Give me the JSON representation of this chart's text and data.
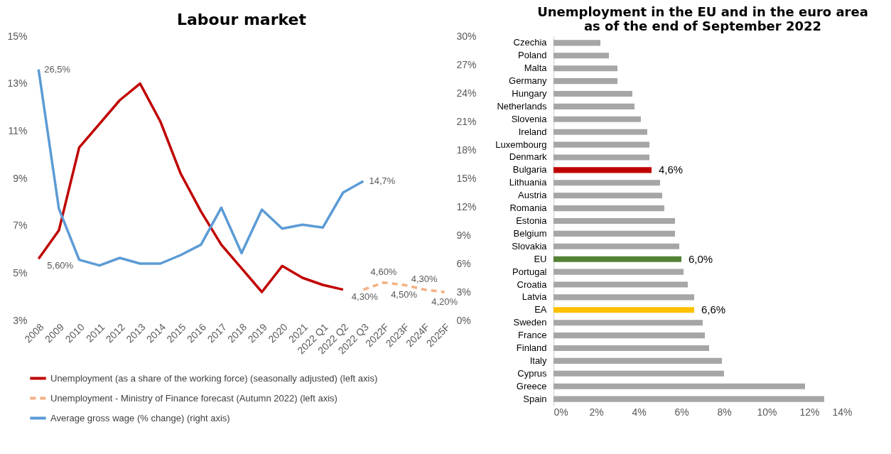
{
  "chart_data": [
    {
      "type": "line",
      "title": "Labour market",
      "categories": [
        "2008",
        "2009",
        "2010",
        "2011",
        "2012",
        "2013",
        "2014",
        "2015",
        "2016",
        "2017",
        "2018",
        "2019",
        "2020",
        "2021",
        "2022 Q1",
        "2022 Q2",
        "2022 Q3",
        "2022F",
        "2023F",
        "2024F",
        "2025F"
      ],
      "series": [
        {
          "name": "Unemployment (as a share of the working force) (seasonally adjusted) (left axis)",
          "color": "#c00000",
          "axis": "y",
          "line_style": "solid",
          "values": [
            5.6,
            6.8,
            10.3,
            11.3,
            12.3,
            13.0,
            11.4,
            9.2,
            7.6,
            6.2,
            5.2,
            4.2,
            5.3,
            4.8,
            4.5,
            4.3,
            null,
            null,
            null,
            null,
            null
          ],
          "value_labels": [
            "5,60%",
            null,
            null,
            null,
            null,
            null,
            null,
            null,
            null,
            null,
            null,
            null,
            null,
            null,
            null,
            "4,30%",
            null,
            null,
            null,
            null,
            null
          ]
        },
        {
          "name": "Unemployment - Ministry of Finance forecast (Autumn 2022) (left axis)",
          "color": "#f4b183",
          "axis": "y",
          "line_style": "dashed",
          "values": [
            null,
            null,
            null,
            null,
            null,
            null,
            null,
            null,
            null,
            null,
            null,
            null,
            null,
            null,
            null,
            null,
            4.3,
            4.6,
            4.5,
            4.3,
            4.2
          ],
          "value_labels": [
            null,
            null,
            null,
            null,
            null,
            null,
            null,
            null,
            null,
            null,
            null,
            null,
            null,
            null,
            null,
            null,
            null,
            "4,60%",
            "4,50%",
            "4,30%",
            "4,20%"
          ]
        },
        {
          "name": "Average gross wage (% change) (right axis)",
          "color": "#5b9bd5",
          "axis": "y2",
          "line_style": "solid",
          "values": [
            26.5,
            11.8,
            6.4,
            5.8,
            6.6,
            6.0,
            6.0,
            6.9,
            8.0,
            11.9,
            7.1,
            11.7,
            9.7,
            10.1,
            9.8,
            13.5,
            14.7,
            null,
            null,
            null,
            null
          ],
          "value_labels": [
            "26,5%",
            null,
            null,
            null,
            null,
            null,
            null,
            null,
            null,
            null,
            null,
            null,
            null,
            null,
            null,
            null,
            "14,7%",
            null,
            null,
            null,
            null
          ]
        }
      ],
      "ylim": [
        3,
        15
      ],
      "yticks": [
        {
          "value": 3,
          "label": "3%"
        },
        {
          "value": 5,
          "label": "5%"
        },
        {
          "value": 7,
          "label": "7%"
        },
        {
          "value": 9,
          "label": "9%"
        },
        {
          "value": 11,
          "label": "11%"
        },
        {
          "value": 13,
          "label": "13%"
        },
        {
          "value": 15,
          "label": "15%"
        }
      ],
      "y2lim": [
        0,
        30
      ],
      "y2ticks": [
        {
          "value": 0,
          "label": "0%"
        },
        {
          "value": 3,
          "label": "3%"
        },
        {
          "value": 6,
          "label": "6%"
        },
        {
          "value": 9,
          "label": "9%"
        },
        {
          "value": 12,
          "label": "12%"
        },
        {
          "value": 15,
          "label": "15%"
        },
        {
          "value": 18,
          "label": "18%"
        },
        {
          "value": 21,
          "label": "21%"
        },
        {
          "value": 24,
          "label": "24%"
        },
        {
          "value": 27,
          "label": "27%"
        },
        {
          "value": 30,
          "label": "30%"
        }
      ],
      "legend": "bottom"
    },
    {
      "type": "bar",
      "orientation": "horizontal",
      "title": "Unemployment in the EU and in the euro area as of the end of September 2022",
      "categories": [
        "Czechia",
        "Poland",
        "Malta",
        "Germany",
        "Hungary",
        "Netherlands",
        "Slovenia",
        "Ireland",
        "Luxembourg",
        "Denmark",
        "Bulgaria",
        "Lithuania",
        "Austria",
        "Romania",
        "Estonia",
        "Belgium",
        "Slovakia",
        "EU",
        "Portugal",
        "Croatia",
        "Latvia",
        "EA",
        "Sweden",
        "France",
        "Finland",
        "Italy",
        "Cyprus",
        "Greece",
        "Spain"
      ],
      "values": [
        2.2,
        2.6,
        3.0,
        3.0,
        3.7,
        3.8,
        4.1,
        4.4,
        4.5,
        4.5,
        4.6,
        5.0,
        5.1,
        5.2,
        5.7,
        5.7,
        5.9,
        6.0,
        6.1,
        6.3,
        6.6,
        6.6,
        7.0,
        7.1,
        7.3,
        7.9,
        8.0,
        11.8,
        12.7
      ],
      "colors": [
        "#a6a6a6",
        "#a6a6a6",
        "#a6a6a6",
        "#a6a6a6",
        "#a6a6a6",
        "#a6a6a6",
        "#a6a6a6",
        "#a6a6a6",
        "#a6a6a6",
        "#a6a6a6",
        "#c00000",
        "#a6a6a6",
        "#a6a6a6",
        "#a6a6a6",
        "#a6a6a6",
        "#a6a6a6",
        "#a6a6a6",
        "#548235",
        "#a6a6a6",
        "#a6a6a6",
        "#a6a6a6",
        "#ffc000",
        "#a6a6a6",
        "#a6a6a6",
        "#a6a6a6",
        "#a6a6a6",
        "#a6a6a6",
        "#a6a6a6",
        "#a6a6a6"
      ],
      "value_labels": [
        null,
        null,
        null,
        null,
        null,
        null,
        null,
        null,
        null,
        null,
        "4,6%",
        null,
        null,
        null,
        null,
        null,
        null,
        "6,0%",
        null,
        null,
        null,
        "6,6%",
        null,
        null,
        null,
        null,
        null,
        null,
        null
      ],
      "xlim": [
        0,
        14
      ],
      "xticks": [
        {
          "value": 0,
          "label": "0%"
        },
        {
          "value": 2,
          "label": "2%"
        },
        {
          "value": 4,
          "label": "4%"
        },
        {
          "value": 6,
          "label": "6%"
        },
        {
          "value": 8,
          "label": "8%"
        },
        {
          "value": 10,
          "label": "10%"
        },
        {
          "value": 12,
          "label": "12%"
        },
        {
          "value": 14,
          "label": "14%"
        }
      ]
    }
  ]
}
